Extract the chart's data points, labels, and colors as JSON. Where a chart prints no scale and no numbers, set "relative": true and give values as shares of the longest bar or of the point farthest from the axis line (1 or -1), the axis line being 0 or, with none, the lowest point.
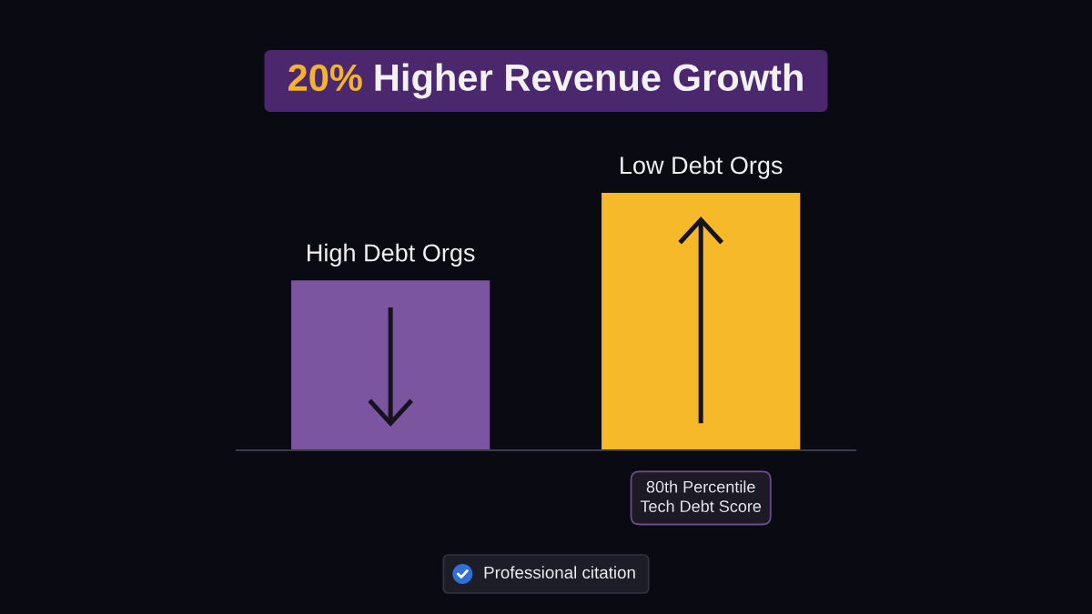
{
  "chart_data": {
    "type": "bar",
    "title": "20% Higher Revenue Growth",
    "categories": [
      "High Debt Orgs",
      "Low Debt Orgs"
    ],
    "values": [
      0.66,
      1
    ],
    "colors": [
      "#7b55a0",
      "#f5b92a"
    ],
    "relative": true,
    "annotations": [
      "80th Percentile\nTech Debt Score",
      "Professional citation"
    ]
  }
}
